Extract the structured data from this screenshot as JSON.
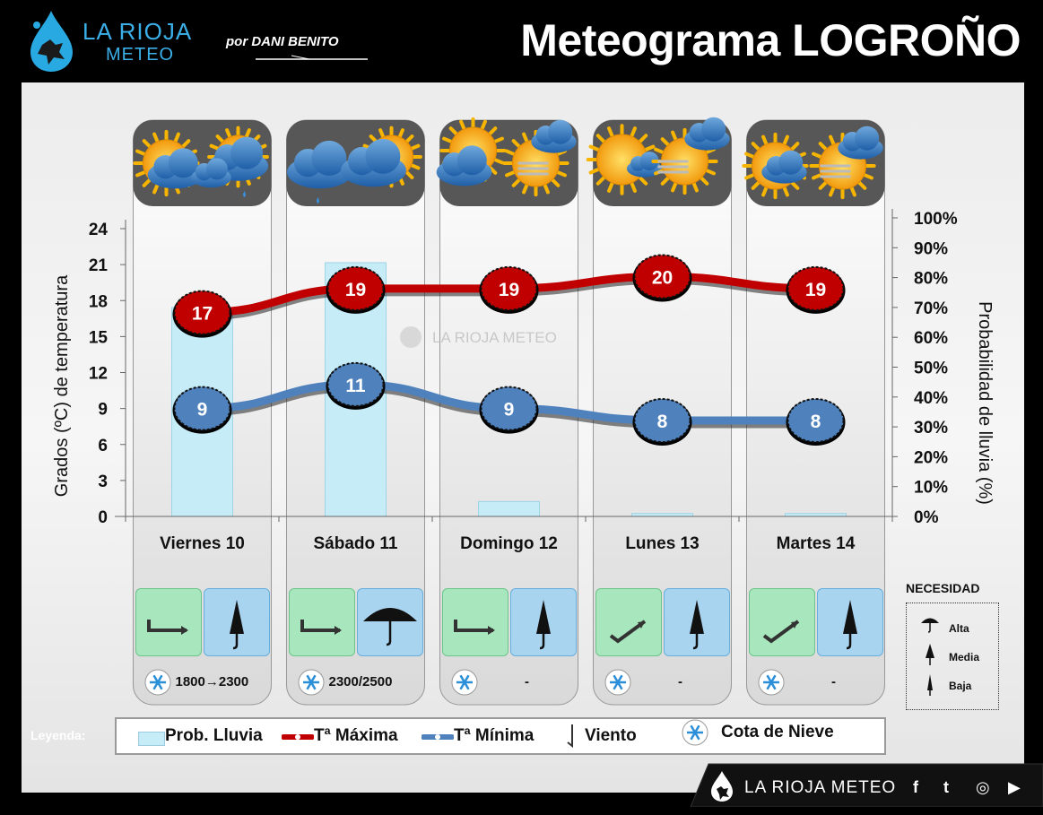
{
  "header": {
    "logo_line1": "LA RIOJA",
    "logo_line2": "METEO",
    "author": "por DANI BENITO",
    "title": "Meteograma LOGROÑO"
  },
  "chart_data": {
    "type": "line",
    "categories": [
      "Viernes 10",
      "Sábado 11",
      "Domingo 12",
      "Lunes 13",
      "Martes 14"
    ],
    "series": [
      {
        "name": "Tª Máxima",
        "values": [
          17,
          19,
          19,
          20,
          19
        ],
        "color": "#c00000"
      },
      {
        "name": "Tª Mínima",
        "values": [
          9,
          11,
          9,
          8,
          8
        ],
        "color": "#4f81bd"
      }
    ],
    "rain_probability": {
      "name": "Prob. Lluvia",
      "values": [
        70,
        85,
        5,
        1,
        1
      ],
      "color": "#c5ecf7"
    },
    "ylabel": "Grados (ºC) de temperatura",
    "ylabel_right": "Probabilidad de lluvia (%)",
    "ylim": [
      0,
      24
    ],
    "yticks": [
      "0",
      "3",
      "6",
      "9",
      "12",
      "15",
      "18",
      "21",
      "24"
    ],
    "ylim_right": [
      0,
      100
    ],
    "yticks_right": [
      "0%",
      "10%",
      "20%",
      "30%",
      "40%",
      "50%",
      "60%",
      "70%",
      "80%",
      "90%",
      "100%"
    ],
    "watermark": "LA RIOJA METEO"
  },
  "days": [
    {
      "wind_icon": "wind-east-arrow-icon",
      "need_icon": "umbrella-closed-icon",
      "snow_text": "1800→2300"
    },
    {
      "wind_icon": "wind-east-arrow-icon",
      "need_icon": "umbrella-open-icon",
      "snow_text": "2300/2500"
    },
    {
      "wind_icon": "wind-east-arrow-icon",
      "need_icon": "umbrella-closed-icon",
      "snow_text": "-"
    },
    {
      "wind_icon": "wind-northeast-arrow-icon",
      "need_icon": "umbrella-closed-icon",
      "snow_text": "-"
    },
    {
      "wind_icon": "wind-northeast-arrow-icon",
      "need_icon": "umbrella-closed-icon",
      "snow_text": "-"
    }
  ],
  "necesidad": {
    "title": "NECESIDAD",
    "alta": "Alta",
    "media": "Media",
    "baja": "Baja"
  },
  "legend": {
    "title": "Leyenda:",
    "rain": "Prob. Lluvia",
    "tmax": "Tª Máxima",
    "tmin": "Tª Mínima",
    "wind": "Viento",
    "snow": "Cota de Nieve"
  },
  "footer": {
    "brand": "LA RIOJA METEO",
    "social_f": "f",
    "social_t": "t",
    "social_i": "◎",
    "social_y": "▶"
  }
}
